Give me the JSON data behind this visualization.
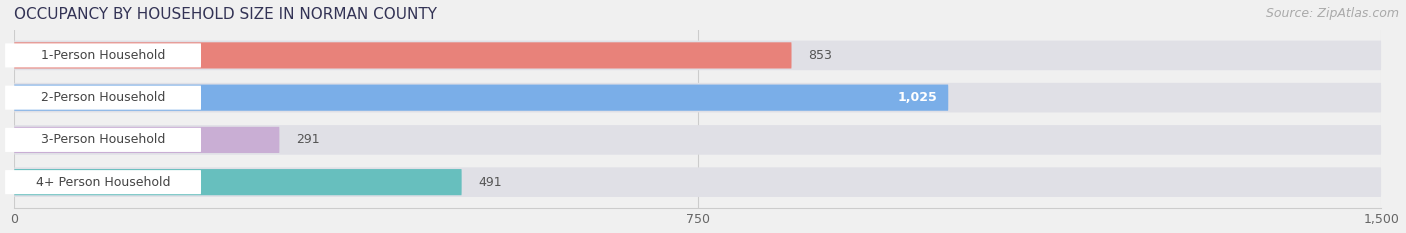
{
  "title": "OCCUPANCY BY HOUSEHOLD SIZE IN NORMAN COUNTY",
  "source": "Source: ZipAtlas.com",
  "categories": [
    "1-Person Household",
    "2-Person Household",
    "3-Person Household",
    "4+ Person Household"
  ],
  "values": [
    853,
    1025,
    291,
    491
  ],
  "bar_colors": [
    "#e8827a",
    "#7aaee8",
    "#c9aed4",
    "#67bfbe"
  ],
  "value_labels": [
    "853",
    "1,025",
    "291",
    "491"
  ],
  "value_label_inside": [
    false,
    true,
    false,
    false
  ],
  "xlim": [
    0,
    1500
  ],
  "xticks": [
    0,
    750,
    1500
  ],
  "xtick_labels": [
    "0",
    "750",
    "1,500"
  ],
  "title_color": "#333355",
  "title_fontsize": 11,
  "source_color": "#aaaaaa",
  "source_fontsize": 9,
  "label_fontsize": 9,
  "value_fontsize": 9,
  "bar_height": 0.62,
  "background_color": "#f0f0f0",
  "row_bg_color": "#e8e8ec"
}
